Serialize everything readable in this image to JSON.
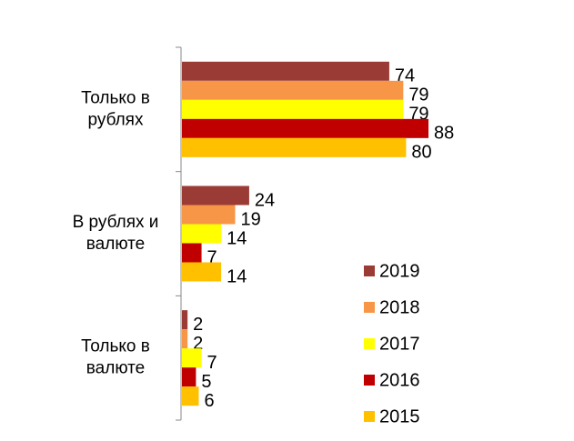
{
  "chart_data": {
    "type": "bar",
    "orientation": "horizontal",
    "categories": [
      [
        "Только в",
        "рублях"
      ],
      [
        "В рублях и",
        "валюте"
      ],
      [
        "Только в",
        "валюте"
      ]
    ],
    "series": [
      {
        "name": "2019",
        "color": "#9b3b35",
        "values": [
          74,
          24,
          2
        ]
      },
      {
        "name": "2018",
        "color": "#f79646",
        "values": [
          79,
          19,
          2
        ]
      },
      {
        "name": "2017",
        "color": "#ffff00",
        "values": [
          79,
          14,
          7
        ]
      },
      {
        "name": "2016",
        "color": "#c00000",
        "values": [
          88,
          7,
          5
        ]
      },
      {
        "name": "2015",
        "color": "#ffc000",
        "values": [
          80,
          14,
          6
        ]
      }
    ],
    "legend": "bottom-right"
  }
}
